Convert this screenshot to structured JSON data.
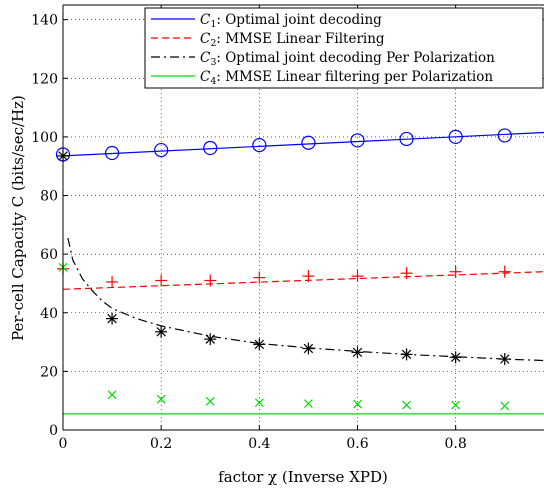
{
  "chart_data": {
    "type": "line",
    "title": "",
    "xlabel": "factor χ (Inverse XPD)",
    "ylabel": "Per-cell Capacity C (bits/sec/Hz)",
    "xlim": [
      0,
      0.98
    ],
    "ylim": [
      0,
      145
    ],
    "grid": true,
    "legend_position": "top-right",
    "x_ticks": [
      0,
      0.2,
      0.4,
      0.6,
      0.8
    ],
    "x_tick_labels": [
      "0",
      "0.2",
      "0.4",
      "0.6",
      "0.8"
    ],
    "y_ticks": [
      0,
      20,
      40,
      60,
      80,
      100,
      120,
      140
    ],
    "y_tick_labels": [
      "0",
      "20",
      "40",
      "60",
      "80",
      "100",
      "120",
      "140"
    ],
    "series": [
      {
        "name": "C1: Optimal joint decoding",
        "legend_var": "C",
        "legend_sub": "1",
        "legend_desc": ": Optimal joint decoding",
        "color": "#0000ff",
        "dash": "solid",
        "marker": "circle",
        "curve": [
          [
            0,
            93.5
          ],
          [
            0.98,
            101.5
          ]
        ],
        "marker_x": [
          0,
          0.1,
          0.2,
          0.3,
          0.4,
          0.5,
          0.6,
          0.7,
          0.8,
          0.9
        ],
        "marker_y": [
          94,
          94.5,
          95.5,
          96.2,
          97.2,
          98,
          98.8,
          99.3,
          100,
          100.5
        ]
      },
      {
        "name": "C2: MMSE Linear Filtering",
        "legend_var": "C",
        "legend_sub": "2",
        "legend_desc": ": MMSE Linear Filtering",
        "color": "#ff0000",
        "dash": "dashed",
        "marker": "plus",
        "curve": [
          [
            0,
            48
          ],
          [
            0.98,
            54
          ]
        ],
        "marker_x": [
          0,
          0.1,
          0.2,
          0.3,
          0.4,
          0.5,
          0.6,
          0.7,
          0.8,
          0.9
        ],
        "marker_y": [
          55,
          50.5,
          51,
          51,
          52,
          52.5,
          52.5,
          53.5,
          54,
          54
        ]
      },
      {
        "name": "C3: Optimal joint decoding Per Polarization",
        "legend_var": "C",
        "legend_sub": "3",
        "legend_desc": ": Optimal joint decoding Per Polarization",
        "color": "#000000",
        "dash": "dashdot",
        "marker": "asterisk",
        "curve": [
          [
            0.01,
            65.5
          ],
          [
            0.02,
            58
          ],
          [
            0.04,
            51.5
          ],
          [
            0.06,
            47.5
          ],
          [
            0.08,
            44
          ],
          [
            0.1,
            41.5
          ],
          [
            0.15,
            38
          ],
          [
            0.2,
            35.5
          ],
          [
            0.3,
            32
          ],
          [
            0.4,
            29.5
          ],
          [
            0.5,
            28
          ],
          [
            0.6,
            26.8
          ],
          [
            0.7,
            25.8
          ],
          [
            0.8,
            25
          ],
          [
            0.9,
            24.2
          ],
          [
            0.98,
            23.7
          ]
        ],
        "marker_x": [
          0,
          0.1,
          0.2,
          0.3,
          0.4,
          0.5,
          0.6,
          0.7,
          0.8,
          0.9
        ],
        "marker_y": [
          93.5,
          38,
          33.5,
          31,
          29.2,
          27.8,
          26.5,
          25.8,
          24.8,
          24.2
        ]
      },
      {
        "name": "C4: MMSE Linear filtering per Polarization",
        "legend_var": "C",
        "legend_sub": "4",
        "legend_desc": ": MMSE Linear filtering per Polarization",
        "color": "#00dd00",
        "dash": "solid",
        "marker": "cross",
        "curve": [
          [
            0,
            5.5
          ],
          [
            0.98,
            5.5
          ]
        ],
        "marker_x": [
          0,
          0.1,
          0.2,
          0.3,
          0.4,
          0.5,
          0.6,
          0.7,
          0.8,
          0.9
        ],
        "marker_y": [
          55.5,
          12,
          10.5,
          9.8,
          9.3,
          9,
          8.8,
          8.5,
          8.5,
          8.2
        ]
      }
    ]
  }
}
